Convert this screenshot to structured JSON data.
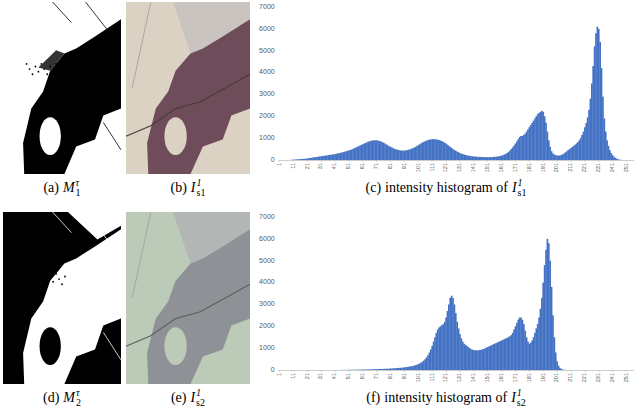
{
  "chart_data": [
    {
      "type": "histogram",
      "color": "#4472c4",
      "grid": false,
      "xlim": [
        0.5,
        256.5
      ],
      "ylim": [
        0,
        7000
      ],
      "xticks": [
        1,
        11,
        21,
        31,
        41,
        51,
        61,
        71,
        81,
        91,
        101,
        111,
        121,
        131,
        141,
        151,
        161,
        171,
        181,
        191,
        201,
        211,
        221,
        231,
        241,
        251
      ],
      "yticks": [
        0,
        1000,
        2000,
        3000,
        4000,
        5000,
        6000,
        7000
      ],
      "bins": [
        0.5,
        1.5,
        2.5,
        3.5,
        4.5,
        5.5,
        6.5,
        7.5,
        8.5,
        9.5,
        10.5,
        11.5,
        12.5,
        13.5,
        14.5,
        15.5,
        16.5,
        17.5,
        18.5,
        19.5,
        20.5,
        21.5,
        22.5,
        23.5,
        24.5,
        25.5,
        26.5,
        27.5,
        28.5,
        29.5,
        30.5,
        31.5,
        32.5,
        33.5,
        34.5,
        35.5,
        36.5,
        37.5,
        38.5,
        39.5,
        40.5,
        41.5,
        42.5,
        43.5,
        44.5,
        45.5,
        46.5,
        47.5,
        48.5,
        49.5,
        50.5,
        51.5,
        52.5,
        53.5,
        54.5,
        55.5,
        56.5,
        57.5,
        58.5,
        59.5,
        60.5,
        61.5,
        62.5,
        63.5,
        64.5,
        65.5,
        66.5,
        67.5,
        68.5,
        69.5,
        70.5,
        71.5,
        72.5,
        73.5,
        74.5,
        75.5,
        76.5,
        77.5,
        78.5,
        79.5,
        80.5,
        81.5,
        82.5,
        83.5,
        84.5,
        85.5,
        86.5,
        87.5,
        88.5,
        89.5,
        90.5,
        91.5,
        92.5,
        93.5,
        94.5,
        95.5,
        96.5,
        97.5,
        98.5,
        99.5,
        100.5,
        101.5,
        102.5,
        103.5,
        104.5,
        105.5,
        106.5,
        107.5,
        108.5,
        109.5,
        110.5,
        111.5,
        112.5,
        113.5,
        114.5,
        115.5,
        116.5,
        117.5,
        118.5,
        119.5,
        120.5,
        121.5,
        122.5,
        123.5,
        124.5,
        125.5,
        126.5,
        127.5,
        128.5,
        129.5,
        130.5,
        131.5,
        132.5,
        133.5,
        134.5,
        135.5,
        136.5,
        137.5,
        138.5,
        139.5,
        140.5,
        141.5,
        142.5,
        143.5,
        144.5,
        145.5,
        146.5,
        147.5,
        148.5,
        149.5,
        150.5,
        151.5,
        152.5,
        153.5,
        154.5,
        155.5,
        156.5,
        157.5,
        158.5,
        159.5,
        160.5,
        161.5,
        162.5,
        163.5,
        164.5,
        165.5,
        166.5,
        167.5,
        168.5,
        169.5,
        170.5,
        171.5,
        172.5,
        173.5,
        174.5,
        175.5,
        176.5,
        177.5,
        178.5,
        179.5,
        180.5,
        181.5,
        182.5,
        183.5,
        184.5,
        185.5,
        186.5,
        187.5,
        188.5,
        189.5,
        190.5,
        191.5,
        192.5,
        193.5,
        194.5,
        195.5,
        196.5,
        197.5,
        198.5,
        199.5,
        200.5,
        201.5,
        202.5,
        203.5,
        204.5,
        205.5,
        206.5,
        207.5,
        208.5,
        209.5,
        210.5,
        211.5,
        212.5,
        213.5,
        214.5,
        215.5,
        216.5,
        217.5,
        218.5,
        219.5,
        220.5,
        221.5,
        222.5,
        223.5,
        224.5,
        225.5,
        226.5,
        227.5,
        228.5,
        229.5,
        230.5,
        231.5,
        232.5,
        233.5,
        234.5,
        235.5,
        236.5,
        237.5,
        238.5,
        239.5,
        240.5,
        241.5,
        242.5,
        243.5,
        244.5,
        245.5,
        246.5,
        247.5,
        248.5,
        249.5,
        250.5,
        251.5,
        252.5,
        253.5,
        254.5,
        255.5,
        256.5
      ],
      "values": [
        0,
        0,
        0,
        0,
        0,
        0,
        0,
        0,
        5,
        10,
        15,
        20,
        25,
        30,
        35,
        40,
        45,
        50,
        55,
        60,
        70,
        80,
        90,
        100,
        110,
        120,
        130,
        140,
        150,
        160,
        170,
        180,
        190,
        200,
        210,
        220,
        230,
        240,
        250,
        260,
        270,
        285,
        300,
        315,
        330,
        345,
        360,
        380,
        400,
        420,
        440,
        460,
        480,
        510,
        540,
        570,
        600,
        630,
        660,
        690,
        720,
        750,
        780,
        810,
        840,
        860,
        880,
        890,
        900,
        900,
        900,
        890,
        870,
        850,
        820,
        790,
        750,
        710,
        670,
        630,
        600,
        570,
        540,
        510,
        490,
        470,
        450,
        440,
        430,
        430,
        430,
        440,
        450,
        470,
        490,
        510,
        540,
        570,
        600,
        640,
        680,
        720,
        760,
        800,
        830,
        860,
        890,
        910,
        930,
        940,
        950,
        950,
        950,
        940,
        930,
        910,
        890,
        860,
        830,
        790,
        750,
        700,
        650,
        600,
        550,
        500,
        460,
        420,
        380,
        350,
        320,
        290,
        270,
        250,
        230,
        210,
        200,
        190,
        180,
        170,
        160,
        155,
        150,
        145,
        140,
        140,
        135,
        135,
        130,
        130,
        130,
        130,
        130,
        135,
        140,
        145,
        150,
        160,
        170,
        180,
        200,
        220,
        250,
        280,
        320,
        370,
        430,
        500,
        580,
        660,
        750,
        850,
        950,
        1050,
        1100,
        1100,
        1150,
        1200,
        1300,
        1400,
        1500,
        1600,
        1700,
        1800,
        1900,
        2000,
        2100,
        2150,
        2200,
        2250,
        2200,
        2000,
        1700,
        1300,
        900,
        600,
        400,
        300,
        250,
        220,
        200,
        200,
        210,
        230,
        260,
        300,
        350,
        400,
        450,
        500,
        550,
        600,
        650,
        700,
        760,
        820,
        900,
        1000,
        1150,
        1300,
        1500,
        1700,
        1950,
        2300,
        2800,
        3500,
        4300,
        5200,
        5800,
        6100,
        6000,
        5400,
        4200,
        2900,
        1900,
        1300,
        900,
        650,
        450,
        320,
        220,
        150,
        100,
        60,
        30,
        15,
        5,
        0,
        0,
        0,
        0,
        0,
        0,
        0,
        0,
        0
      ]
    },
    {
      "type": "histogram",
      "color": "#4472c4",
      "grid": false,
      "xlim": [
        0.5,
        256.5
      ],
      "ylim": [
        0,
        7000
      ],
      "xticks": [
        1,
        11,
        21,
        31,
        41,
        51,
        61,
        71,
        81,
        91,
        101,
        111,
        121,
        131,
        141,
        151,
        161,
        171,
        181,
        191,
        201,
        211,
        221,
        231,
        241,
        251
      ],
      "yticks": [
        0,
        1000,
        2000,
        3000,
        4000,
        5000,
        6000,
        7000
      ],
      "bins": [
        0.5,
        1.5,
        2.5,
        3.5,
        4.5,
        5.5,
        6.5,
        7.5,
        8.5,
        9.5,
        10.5,
        11.5,
        12.5,
        13.5,
        14.5,
        15.5,
        16.5,
        17.5,
        18.5,
        19.5,
        20.5,
        21.5,
        22.5,
        23.5,
        24.5,
        25.5,
        26.5,
        27.5,
        28.5,
        29.5,
        30.5,
        31.5,
        32.5,
        33.5,
        34.5,
        35.5,
        36.5,
        37.5,
        38.5,
        39.5,
        40.5,
        41.5,
        42.5,
        43.5,
        44.5,
        45.5,
        46.5,
        47.5,
        48.5,
        49.5,
        50.5,
        51.5,
        52.5,
        53.5,
        54.5,
        55.5,
        56.5,
        57.5,
        58.5,
        59.5,
        60.5,
        61.5,
        62.5,
        63.5,
        64.5,
        65.5,
        66.5,
        67.5,
        68.5,
        69.5,
        70.5,
        71.5,
        72.5,
        73.5,
        74.5,
        75.5,
        76.5,
        77.5,
        78.5,
        79.5,
        80.5,
        81.5,
        82.5,
        83.5,
        84.5,
        85.5,
        86.5,
        87.5,
        88.5,
        89.5,
        90.5,
        91.5,
        92.5,
        93.5,
        94.5,
        95.5,
        96.5,
        97.5,
        98.5,
        99.5,
        100.5,
        101.5,
        102.5,
        103.5,
        104.5,
        105.5,
        106.5,
        107.5,
        108.5,
        109.5,
        110.5,
        111.5,
        112.5,
        113.5,
        114.5,
        115.5,
        116.5,
        117.5,
        118.5,
        119.5,
        120.5,
        121.5,
        122.5,
        123.5,
        124.5,
        125.5,
        126.5,
        127.5,
        128.5,
        129.5,
        130.5,
        131.5,
        132.5,
        133.5,
        134.5,
        135.5,
        136.5,
        137.5,
        138.5,
        139.5,
        140.5,
        141.5,
        142.5,
        143.5,
        144.5,
        145.5,
        146.5,
        147.5,
        148.5,
        149.5,
        150.5,
        151.5,
        152.5,
        153.5,
        154.5,
        155.5,
        156.5,
        157.5,
        158.5,
        159.5,
        160.5,
        161.5,
        162.5,
        163.5,
        164.5,
        165.5,
        166.5,
        167.5,
        168.5,
        169.5,
        170.5,
        171.5,
        172.5,
        173.5,
        174.5,
        175.5,
        176.5,
        177.5,
        178.5,
        179.5,
        180.5,
        181.5,
        182.5,
        183.5,
        184.5,
        185.5,
        186.5,
        187.5,
        188.5,
        189.5,
        190.5,
        191.5,
        192.5,
        193.5,
        194.5,
        195.5,
        196.5,
        197.5,
        198.5,
        199.5,
        200.5,
        201.5,
        202.5,
        203.5,
        204.5,
        205.5,
        206.5,
        207.5,
        208.5,
        209.5,
        210.5,
        211.5,
        212.5,
        213.5,
        214.5,
        215.5,
        216.5,
        217.5,
        218.5,
        219.5,
        220.5,
        221.5,
        222.5,
        223.5,
        224.5,
        225.5,
        226.5,
        227.5,
        228.5,
        229.5,
        230.5,
        231.5,
        232.5,
        233.5,
        234.5,
        235.5,
        236.5,
        237.5,
        238.5,
        239.5,
        240.5,
        241.5,
        242.5,
        243.5,
        244.5,
        245.5,
        246.5,
        247.5,
        248.5,
        249.5,
        250.5,
        251.5,
        252.5,
        253.5,
        254.5,
        255.5,
        256.5
      ],
      "values": [
        0,
        0,
        0,
        0,
        0,
        0,
        0,
        0,
        0,
        0,
        0,
        0,
        0,
        0,
        0,
        0,
        0,
        0,
        0,
        0,
        0,
        0,
        0,
        0,
        0,
        0,
        0,
        0,
        0,
        0,
        0,
        0,
        0,
        0,
        0,
        0,
        0,
        0,
        0,
        0,
        0,
        0,
        0,
        0,
        0,
        5,
        5,
        5,
        5,
        5,
        10,
        10,
        10,
        10,
        10,
        15,
        15,
        15,
        15,
        20,
        20,
        20,
        25,
        25,
        25,
        30,
        30,
        30,
        35,
        35,
        40,
        40,
        45,
        45,
        50,
        50,
        55,
        55,
        60,
        60,
        65,
        70,
        75,
        80,
        85,
        90,
        95,
        100,
        105,
        110,
        120,
        130,
        140,
        150,
        160,
        170,
        180,
        200,
        220,
        240,
        270,
        300,
        340,
        380,
        430,
        500,
        580,
        680,
        800,
        950,
        1100,
        1300,
        1500,
        1700,
        1850,
        1950,
        2000,
        2050,
        2100,
        2200,
        2400,
        2700,
        3000,
        3300,
        3400,
        3300,
        3000,
        2600,
        2200,
        1900,
        1650,
        1450,
        1300,
        1200,
        1150,
        1100,
        1050,
        1000,
        950,
        930,
        910,
        900,
        900,
        900,
        910,
        920,
        940,
        960,
        990,
        1020,
        1050,
        1080,
        1110,
        1140,
        1170,
        1200,
        1230,
        1260,
        1290,
        1320,
        1350,
        1380,
        1410,
        1440,
        1470,
        1500,
        1550,
        1600,
        1700,
        1850,
        2000,
        2150,
        2300,
        2400,
        2400,
        2300,
        2100,
        1800,
        1500,
        1300,
        1200,
        1250,
        1350,
        1500,
        1700,
        1900,
        2100,
        2400,
        2800,
        3300,
        4000,
        4800,
        5500,
        6000,
        5800,
        5000,
        3800,
        2500,
        1500,
        800,
        400,
        200,
        100,
        50,
        20,
        10,
        5,
        0,
        0,
        0,
        0,
        0,
        0,
        0,
        0,
        0,
        0,
        0,
        0,
        0,
        0,
        0,
        0,
        0,
        0,
        0,
        0,
        0,
        0,
        0,
        0,
        0,
        0,
        0,
        0,
        0,
        0,
        0,
        0,
        0,
        0,
        0,
        0,
        0,
        0,
        0,
        0,
        0,
        0,
        0,
        0,
        0,
        0,
        0,
        0,
        0
      ]
    }
  ],
  "figure": {
    "captions": [
      {
        "letter": "(a)",
        "symbol": "M",
        "subscript": "1",
        "superscript": "τ"
      },
      {
        "letter": "(b)",
        "symbol": "I",
        "subscript": "s1",
        "superscript": "1"
      },
      {
        "letter": "(c)",
        "text": "intensity histogram of",
        "symbol": "I",
        "subscript": "s1",
        "superscript": "1"
      },
      {
        "letter": "(d)",
        "symbol": "M",
        "subscript": "2",
        "superscript": "τ"
      },
      {
        "letter": "(e)",
        "symbol": "I",
        "subscript": "s2",
        "superscript": "1"
      },
      {
        "letter": "(f)",
        "text": "intensity histogram of",
        "symbol": "I",
        "subscript": "s2",
        "superscript": "1"
      }
    ]
  }
}
